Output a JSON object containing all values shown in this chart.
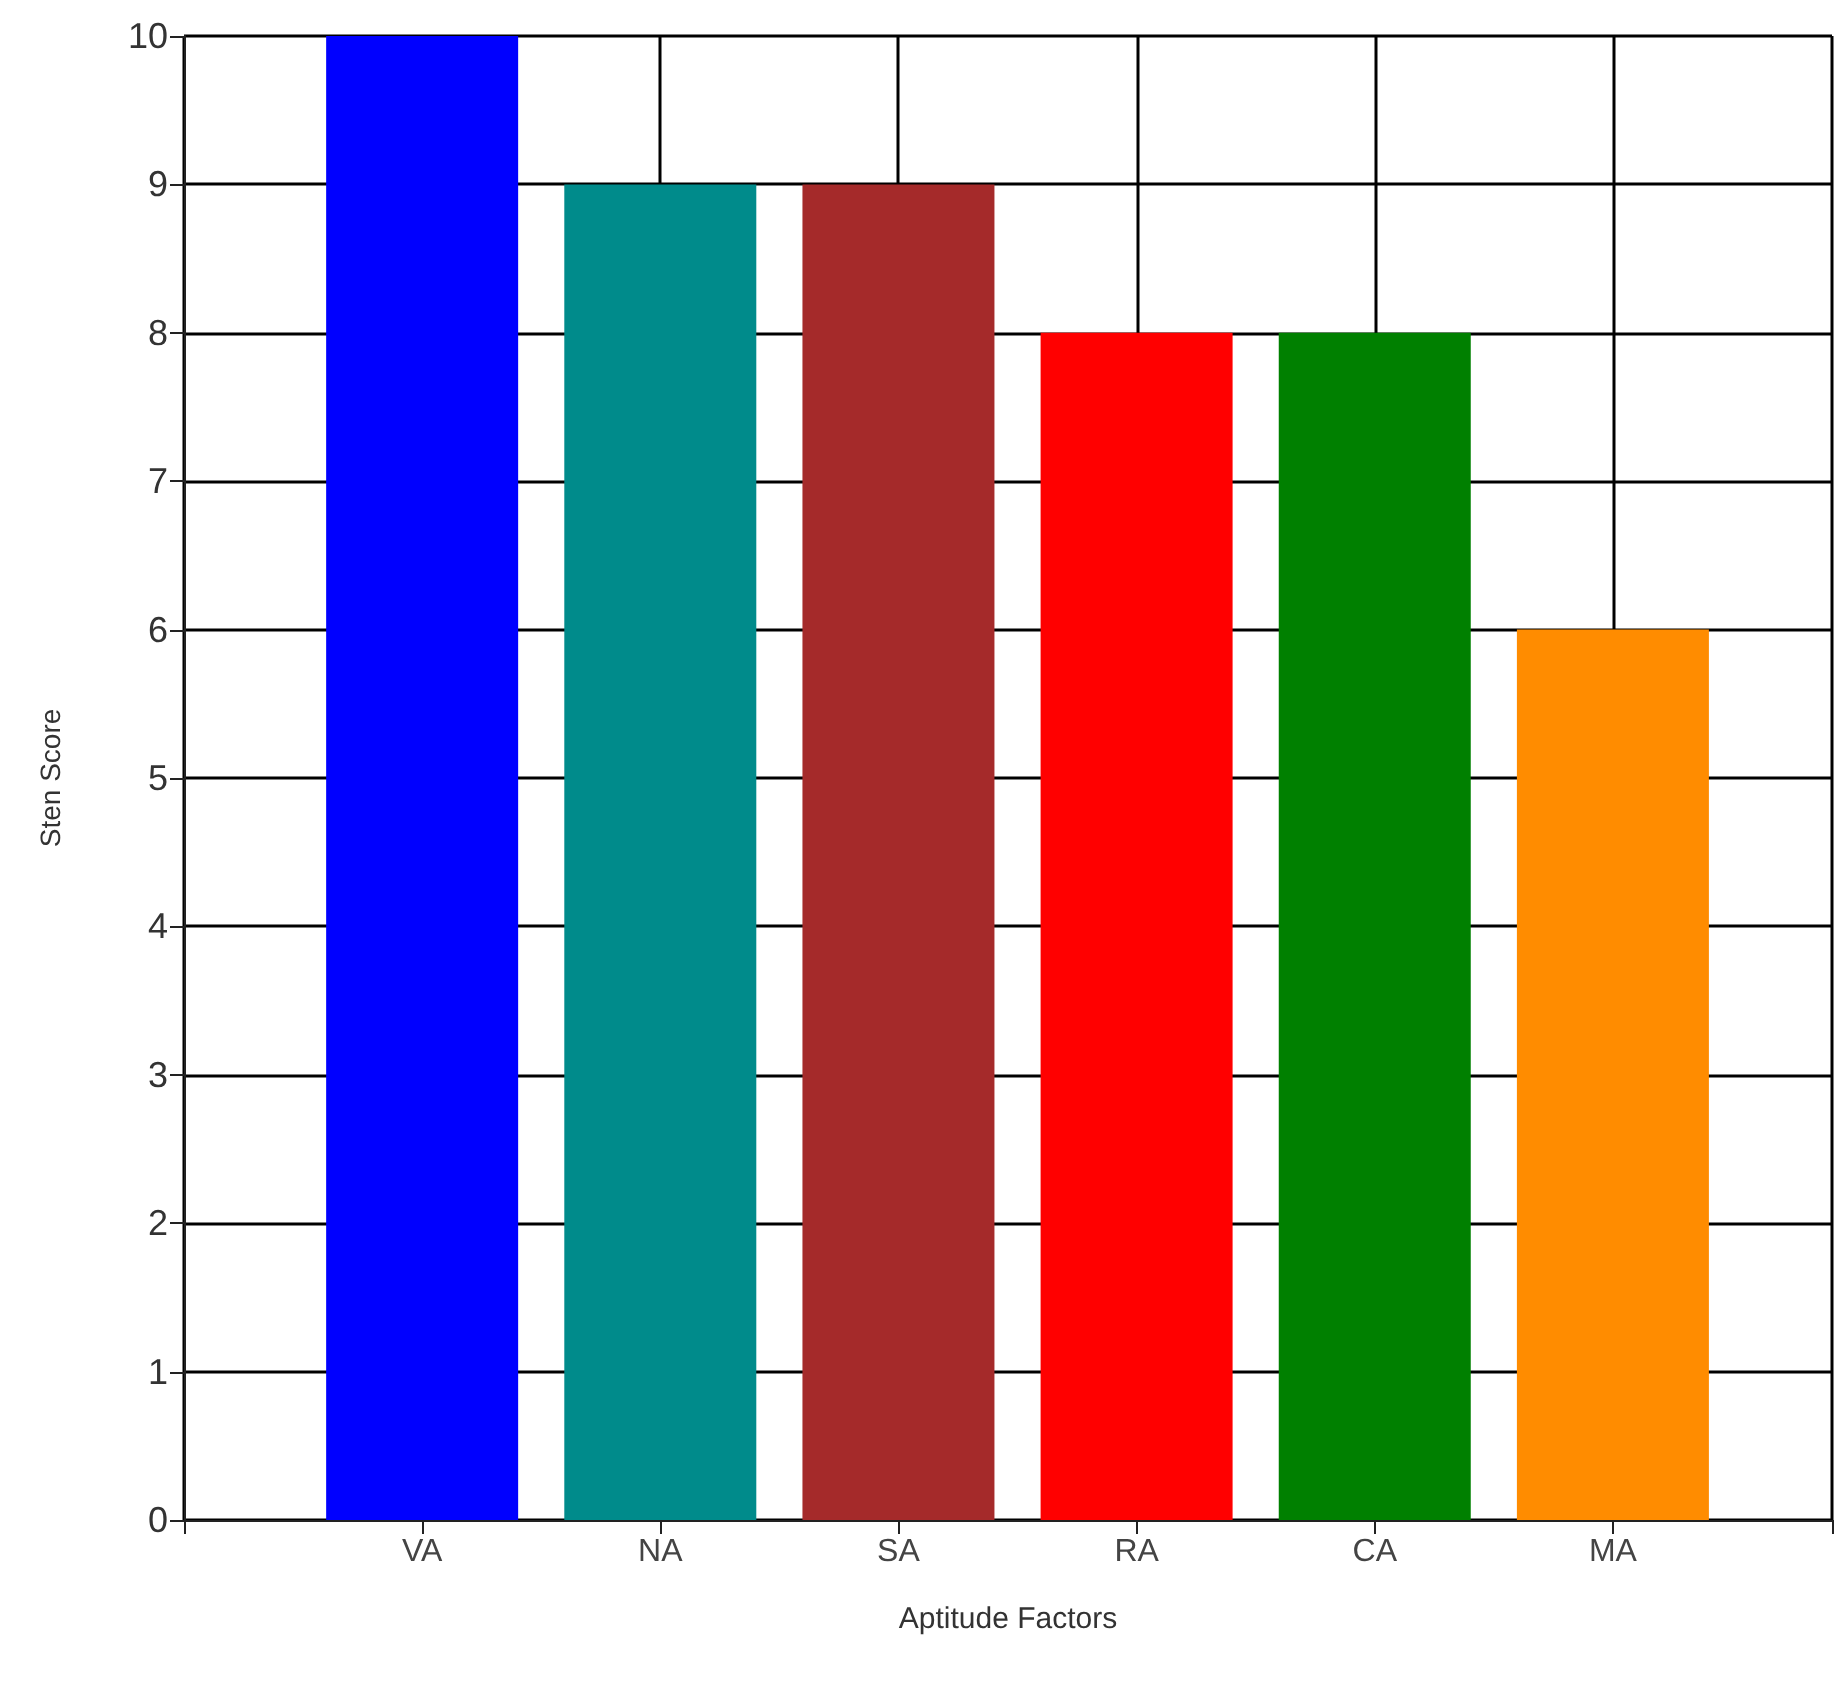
{
  "chart_data": {
    "type": "bar",
    "xlabel": "Aptitude Factors",
    "ylabel": "Sten Score",
    "categories": [
      "VA",
      "NA",
      "SA",
      "RA",
      "CA",
      "MA"
    ],
    "values": [
      10,
      9,
      9,
      8,
      8,
      6
    ],
    "colors": [
      "#0000ff",
      "#008b8b",
      "#a52a2a",
      "#ff0000",
      "#008000",
      "#ff8c00"
    ],
    "ylim": [
      0,
      10
    ],
    "yticks": [
      0,
      1,
      2,
      3,
      4,
      5,
      6,
      7,
      8,
      9,
      10
    ],
    "grid": true
  }
}
